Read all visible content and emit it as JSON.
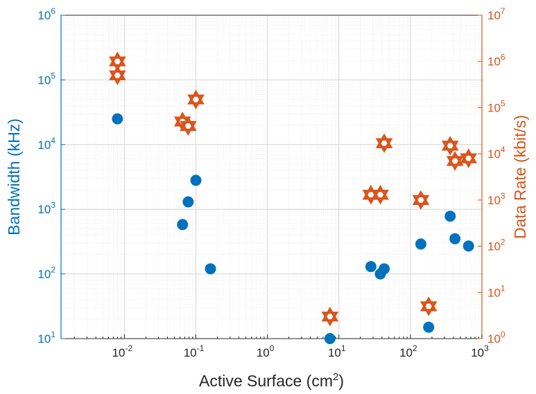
{
  "chart_data": {
    "type": "scatter",
    "xlabel_base": "Active Surface (cm",
    "xlabel_sup": "2",
    "xlabel_tail": ")",
    "ylabel_left": "Bandwidth (kHz)",
    "ylabel_right": "Data Rate (kbit/s)",
    "x_scale": "log",
    "y_scale_left": "log",
    "y_scale_right": "log",
    "xlim": [
      0.0013,
      1000
    ],
    "ylim_left": [
      10,
      1000000
    ],
    "ylim_right": [
      1,
      10000000
    ],
    "grid": true,
    "x_ticks": [
      {
        "value": 0.01,
        "base": "10",
        "exp": "-2"
      },
      {
        "value": 0.1,
        "base": "10",
        "exp": "-1"
      },
      {
        "value": 1,
        "base": "10",
        "exp": "0"
      },
      {
        "value": 10,
        "base": "10",
        "exp": "1"
      },
      {
        "value": 100,
        "base": "10",
        "exp": "2"
      },
      {
        "value": 1000,
        "base": "10",
        "exp": "3"
      }
    ],
    "y_ticks_left": [
      {
        "value": 10,
        "base": "10",
        "exp": "1"
      },
      {
        "value": 100,
        "base": "10",
        "exp": "2"
      },
      {
        "value": 1000,
        "base": "10",
        "exp": "3"
      },
      {
        "value": 10000,
        "base": "10",
        "exp": "4"
      },
      {
        "value": 100000,
        "base": "10",
        "exp": "5"
      },
      {
        "value": 1000000,
        "base": "10",
        "exp": "6"
      }
    ],
    "y_ticks_right": [
      {
        "value": 1,
        "base": "10",
        "exp": "0"
      },
      {
        "value": 10,
        "base": "10",
        "exp": "1"
      },
      {
        "value": 100,
        "base": "10",
        "exp": "2"
      },
      {
        "value": 1000,
        "base": "10",
        "exp": "3"
      },
      {
        "value": 10000,
        "base": "10",
        "exp": "4"
      },
      {
        "value": 100000,
        "base": "10",
        "exp": "5"
      },
      {
        "value": 1000000,
        "base": "10",
        "exp": "6"
      },
      {
        "value": 10000000,
        "base": "10",
        "exp": "7"
      }
    ],
    "series": [
      {
        "axis": "left",
        "marker": "circle",
        "color": "#0072BD",
        "points": [
          {
            "x": 0.008,
            "y": 25000
          },
          {
            "x": 0.065,
            "y": 580
          },
          {
            "x": 0.078,
            "y": 1300
          },
          {
            "x": 0.1,
            "y": 2800
          },
          {
            "x": 0.16,
            "y": 120
          },
          {
            "x": 7.5,
            "y": 10
          },
          {
            "x": 28,
            "y": 130
          },
          {
            "x": 38,
            "y": 100
          },
          {
            "x": 43,
            "y": 120
          },
          {
            "x": 140,
            "y": 290
          },
          {
            "x": 180,
            "y": 15
          },
          {
            "x": 360,
            "y": 780
          },
          {
            "x": 420,
            "y": 350
          },
          {
            "x": 650,
            "y": 270
          }
        ]
      },
      {
        "axis": "right",
        "marker": "hexagram",
        "color": "#D95319",
        "points": [
          {
            "x": 0.008,
            "y": 1000000
          },
          {
            "x": 0.008,
            "y": 500000
          },
          {
            "x": 0.065,
            "y": 50000
          },
          {
            "x": 0.078,
            "y": 40000
          },
          {
            "x": 0.1,
            "y": 150000
          },
          {
            "x": 7.5,
            "y": 3
          },
          {
            "x": 28,
            "y": 1300
          },
          {
            "x": 38,
            "y": 1300
          },
          {
            "x": 43,
            "y": 17000
          },
          {
            "x": 140,
            "y": 1000
          },
          {
            "x": 180,
            "y": 5
          },
          {
            "x": 360,
            "y": 15000
          },
          {
            "x": 420,
            "y": 7000
          },
          {
            "x": 650,
            "y": 8000
          }
        ]
      }
    ]
  }
}
